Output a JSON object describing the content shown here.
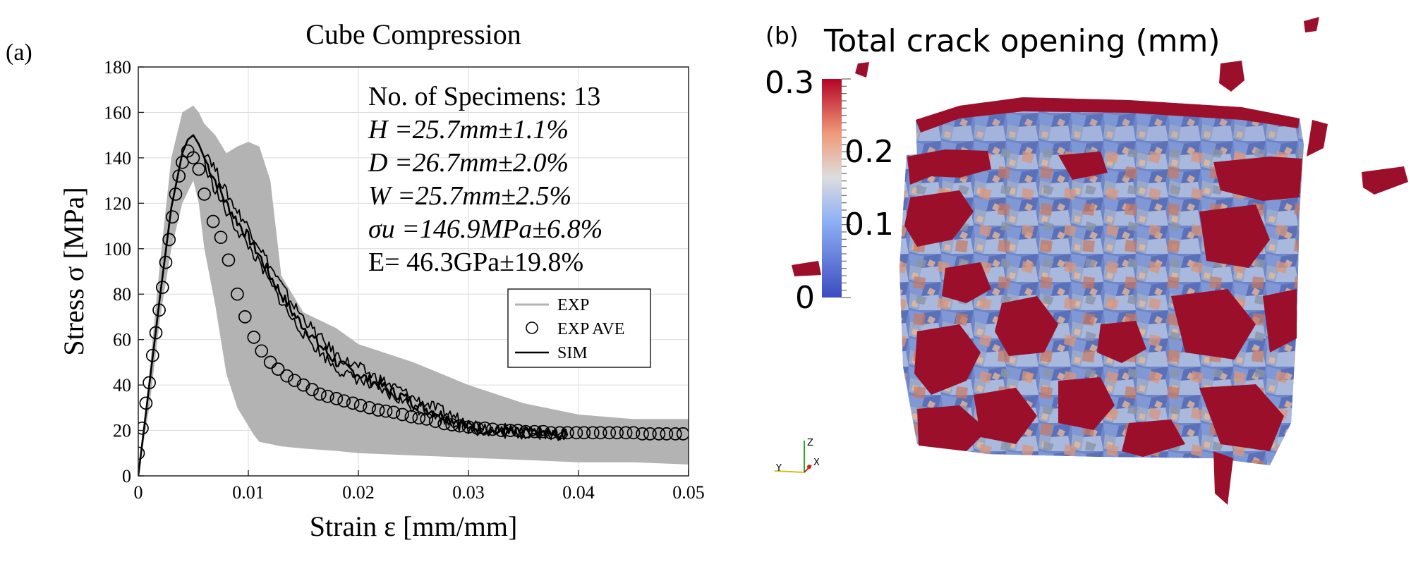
{
  "panel_a": {
    "label": "(a)",
    "chart_data": {
      "type": "line",
      "title": "Cube Compression",
      "xlabel": "Strain ε [mm/mm]",
      "ylabel": "Stress σ [MPa]",
      "xlim": [
        0,
        0.05
      ],
      "ylim": [
        0,
        180
      ],
      "xticks": [
        "0",
        "0.01",
        "0.02",
        "0.03",
        "0.04",
        "0.05"
      ],
      "yticks": [
        "0",
        "20",
        "40",
        "60",
        "80",
        "100",
        "120",
        "140",
        "160",
        "180"
      ],
      "xtick_values": [
        0,
        0.01,
        0.02,
        0.03,
        0.04,
        0.05
      ],
      "ytick_values": [
        0,
        20,
        40,
        60,
        80,
        100,
        120,
        140,
        160,
        180
      ],
      "grid": true,
      "legend_position": "right",
      "annotations": [
        "No. of Specimens: 13",
        "H =25.7mm±1.1%",
        "D =26.7mm±2.0%",
        "W =25.7mm±2.5%",
        "σu =146.9MPa±6.8%",
        "E= 46.3GPa±19.8%"
      ],
      "series": [
        {
          "name": "EXP",
          "kind": "band",
          "color": "#b3b3b3",
          "x": [
            0,
            0.001,
            0.002,
            0.003,
            0.004,
            0.005,
            0.0055,
            0.006,
            0.007,
            0.008,
            0.009,
            0.01,
            0.0105,
            0.011,
            0.012,
            0.013,
            0.015,
            0.018,
            0.02,
            0.025,
            0.03,
            0.035,
            0.04,
            0.045,
            0.05
          ],
          "upper": [
            0,
            45,
            95,
            140,
            160,
            163,
            160,
            155,
            150,
            142,
            145,
            147,
            146,
            145,
            130,
            88,
            72,
            65,
            58,
            50,
            40,
            32,
            27,
            25,
            25
          ],
          "lower": [
            0,
            30,
            70,
            100,
            120,
            130,
            120,
            100,
            75,
            45,
            30,
            22,
            18,
            15,
            14,
            13,
            12,
            11,
            10,
            9,
            8,
            7,
            6,
            6,
            5
          ]
        },
        {
          "name": "EXP AVE",
          "kind": "markers",
          "color": "#000000",
          "x": [
            0,
            0.00035,
            0.0007,
            0.001,
            0.0013,
            0.0016,
            0.0019,
            0.0022,
            0.0025,
            0.0028,
            0.0031,
            0.0034,
            0.0037,
            0.004,
            0.0045,
            0.005,
            0.0055,
            0.006,
            0.0068,
            0.0075,
            0.0082,
            0.009,
            0.0097,
            0.0105,
            0.0112,
            0.012,
            0.0127,
            0.0135,
            0.0142,
            0.015,
            0.0158,
            0.0165,
            0.0172,
            0.018,
            0.0187,
            0.0195,
            0.0202,
            0.021,
            0.0218,
            0.0225,
            0.0232,
            0.024,
            0.0248,
            0.0255,
            0.0262,
            0.027,
            0.0278,
            0.0285,
            0.0292,
            0.03,
            0.0308,
            0.0315,
            0.0322,
            0.033,
            0.0338,
            0.0345,
            0.0352,
            0.036,
            0.0368,
            0.0375,
            0.0383,
            0.039,
            0.0398,
            0.0405,
            0.0413,
            0.042,
            0.0428,
            0.0435,
            0.0443,
            0.045,
            0.0458,
            0.0465,
            0.0473,
            0.048,
            0.0488,
            0.0495
          ],
          "values": [
            10,
            21,
            32,
            41,
            53,
            63,
            73,
            83,
            94,
            104,
            114,
            124,
            132,
            138,
            143,
            140,
            135,
            124,
            112,
            105,
            95,
            80,
            70,
            61,
            55,
            50,
            47,
            44,
            42,
            40,
            38,
            36,
            35,
            34,
            33,
            32,
            31,
            30,
            29,
            28.5,
            28,
            27,
            26,
            25.5,
            25,
            24,
            23,
            22.5,
            22,
            21.5,
            21,
            21,
            20.5,
            20,
            20,
            20,
            19.5,
            19.5,
            19.5,
            19,
            19,
            19,
            19,
            19,
            19,
            19,
            19,
            19,
            19,
            19,
            18.5,
            18.5,
            18.5,
            18.5,
            18.5,
            18.5
          ]
        },
        {
          "name": "SIM",
          "kind": "line",
          "color": "#000000",
          "x": [
            0,
            0.001,
            0.002,
            0.003,
            0.004,
            0.0045,
            0.005,
            0.0055,
            0.006,
            0.007,
            0.008,
            0.009,
            0.01,
            0.011,
            0.012,
            0.013,
            0.014,
            0.015,
            0.016,
            0.017,
            0.018,
            0.019,
            0.02,
            0.021,
            0.022,
            0.023,
            0.024,
            0.025,
            0.026,
            0.027,
            0.028,
            0.029,
            0.03,
            0.031,
            0.032,
            0.033,
            0.034,
            0.035,
            0.036,
            0.037,
            0.038,
            0.039
          ],
          "values": [
            0,
            40,
            80,
            118,
            142,
            148,
            150,
            146,
            140,
            130,
            120,
            112,
            105,
            97,
            88,
            80,
            72,
            66,
            60,
            55,
            50,
            47,
            45,
            42,
            40,
            37,
            35,
            32,
            30,
            28,
            26,
            24,
            22,
            21,
            20,
            20,
            19,
            19,
            19,
            19,
            18,
            18
          ]
        }
      ],
      "legend": [
        "EXP",
        "EXP AVE",
        "SIM"
      ]
    }
  },
  "panel_b": {
    "label": "(b)",
    "title": "Total crack opening (mm)",
    "colorbar": {
      "max_label": "0.3",
      "mid_labels": [
        "0.2",
        "0.1"
      ],
      "min_label": "0",
      "range": [
        0,
        0.3
      ],
      "color_low": "#3b4cc0",
      "color_mid": "#dddddd",
      "color_high": "#b40426"
    },
    "axes_triad": {
      "z": "Z",
      "y": "Y",
      "x": "X"
    }
  }
}
